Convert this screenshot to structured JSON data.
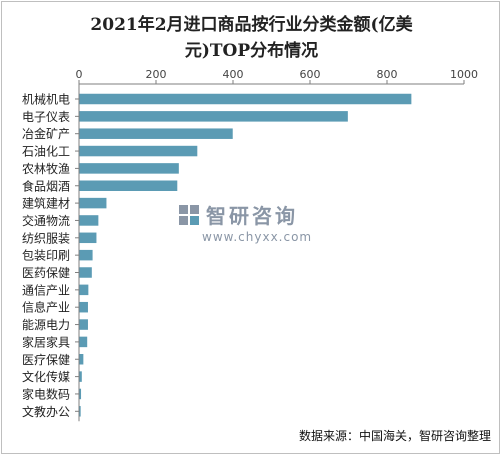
{
  "title_line1": "2021年2月进口商品按行业分类金额(亿美",
  "title_line2": "元)TOP分布情况",
  "source": "数据来源：中国海关，智研咨询整理",
  "watermark": {
    "cn": "智研咨询",
    "url": "www.chyxx.com"
  },
  "colors": {
    "bar": "#5b9bb4",
    "axis": "#7f7f7f",
    "text": "#222222"
  },
  "chart_data": {
    "type": "bar",
    "orientation": "horizontal",
    "categories": [
      "机械机电",
      "电子仪表",
      "冶金矿产",
      "石油化工",
      "农林牧渔",
      "食品烟酒",
      "建筑建材",
      "交通物流",
      "纺织服装",
      "包装印刷",
      "医药保健",
      "通信产业",
      "信息产业",
      "能源电力",
      "家居家具",
      "医疗保健",
      "文化传媒",
      "家电数码",
      "文教办公"
    ],
    "values": [
      862,
      697,
      398,
      306,
      258,
      254,
      70,
      49,
      44,
      34,
      32,
      23,
      22,
      22,
      20,
      10,
      6,
      4,
      3
    ],
    "xlim": [
      0,
      1000
    ],
    "xticks": [
      "0",
      "200",
      "400",
      "600",
      "800",
      "1000"
    ],
    "xaxis_position": "top",
    "grid": false,
    "legend": "none"
  }
}
